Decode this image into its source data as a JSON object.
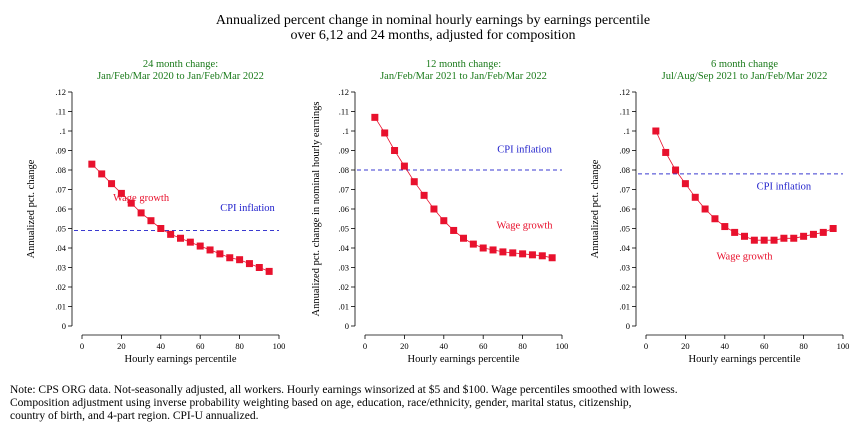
{
  "title_lines": [
    "Annualized percent change in nominal hourly earnings by earnings percentile",
    "over 6,12 and 24 months, adjusted for composition"
  ],
  "note_lines": [
    "Note: CPS ORG data. Not-seasonally adjusted, all workers. Hourly earnings winsorized at $5 and $100. Wage percentiles smoothed with lowess.",
    "Composition adjustment using inverse probability weighting based on age, education, race/ethnicity, gender, marital status, citizenship,",
    "country of birth, and 4-part region. CPI-U annualized."
  ],
  "colors": {
    "title_green": "#1a7a1a",
    "wage_red": "#e8112d",
    "cpi_blue": "#2222cc",
    "cpi_line": "#3a3ad0"
  },
  "chart_data": [
    {
      "type": "line",
      "title": [
        "24 month change:",
        "Jan/Feb/Mar 2020 to Jan/Feb/Mar 2022"
      ],
      "xlabel": "Hourly earnings percentile",
      "ylabel": "Annualized pct. change",
      "xlim": [
        0,
        100
      ],
      "ylim": [
        0,
        0.12
      ],
      "xticks": [
        "0",
        "20",
        "40",
        "60",
        "80",
        "100"
      ],
      "yticks": [
        "0",
        ".01",
        ".02",
        ".03",
        ".04",
        ".05",
        ".06",
        ".07",
        ".08",
        ".09",
        ".1",
        ".11",
        ".12"
      ],
      "series": [
        {
          "name": "Wage growth",
          "x": [
            5,
            10,
            15,
            20,
            25,
            30,
            35,
            40,
            45,
            50,
            55,
            60,
            65,
            70,
            75,
            80,
            85,
            90,
            95
          ],
          "y": [
            0.083,
            0.078,
            0.073,
            0.068,
            0.063,
            0.058,
            0.054,
            0.05,
            0.047,
            0.045,
            0.043,
            0.041,
            0.039,
            0.037,
            0.035,
            0.034,
            0.032,
            0.03,
            0.028
          ]
        },
        {
          "name": "CPI inflation",
          "y": 0.049
        }
      ],
      "annotations": [
        {
          "text": "Wage growth",
          "x": 30,
          "y": 0.064,
          "color": "wage_red"
        },
        {
          "text": "CPI inflation",
          "x": 84,
          "y": 0.059,
          "color": "cpi_blue"
        }
      ]
    },
    {
      "type": "line",
      "title": [
        "12 month change:",
        "Jan/Feb/Mar 2021 to Jan/Feb/Mar 2022"
      ],
      "xlabel": "Hourly earnings percentile",
      "ylabel": "Annualized pct. change in nominal hourly earnings",
      "xlim": [
        0,
        100
      ],
      "ylim": [
        0,
        0.12
      ],
      "xticks": [
        "0",
        "20",
        "40",
        "60",
        "80",
        "100"
      ],
      "yticks": [
        "0",
        ".01",
        ".02",
        ".03",
        ".04",
        ".05",
        ".06",
        ".07",
        ".08",
        ".09",
        ".1",
        ".11",
        ".12"
      ],
      "series": [
        {
          "name": "Wage growth",
          "x": [
            5,
            10,
            15,
            20,
            25,
            30,
            35,
            40,
            45,
            50,
            55,
            60,
            65,
            70,
            75,
            80,
            85,
            90,
            95
          ],
          "y": [
            0.107,
            0.099,
            0.09,
            0.082,
            0.074,
            0.067,
            0.06,
            0.054,
            0.049,
            0.045,
            0.042,
            0.04,
            0.039,
            0.038,
            0.0375,
            0.037,
            0.0365,
            0.036,
            0.035
          ]
        },
        {
          "name": "CPI inflation",
          "y": 0.08
        }
      ],
      "annotations": [
        {
          "text": "CPI inflation",
          "x": 81,
          "y": 0.089,
          "color": "cpi_blue"
        },
        {
          "text": "Wage growth",
          "x": 81,
          "y": 0.05,
          "color": "wage_red"
        }
      ]
    },
    {
      "type": "line",
      "title": [
        "6 month change",
        "Jul/Aug/Sep 2021 to Jan/Feb/Mar 2022"
      ],
      "xlabel": "Hourly earnings percentile",
      "ylabel": "Annualized pct. change",
      "xlim": [
        0,
        100
      ],
      "ylim": [
        0,
        0.12
      ],
      "xticks": [
        "0",
        "20",
        "40",
        "60",
        "80",
        "100"
      ],
      "yticks": [
        "0",
        ".01",
        ".02",
        ".03",
        ".04",
        ".05",
        ".06",
        ".07",
        ".08",
        ".09",
        ".1",
        ".11",
        ".12"
      ],
      "series": [
        {
          "name": "Wage growth",
          "x": [
            5,
            10,
            15,
            20,
            25,
            30,
            35,
            40,
            45,
            50,
            55,
            60,
            65,
            70,
            75,
            80,
            85,
            90,
            95
          ],
          "y": [
            0.1,
            0.089,
            0.08,
            0.073,
            0.066,
            0.06,
            0.055,
            0.051,
            0.048,
            0.046,
            0.044,
            0.044,
            0.044,
            0.045,
            0.045,
            0.046,
            0.047,
            0.048,
            0.05
          ]
        },
        {
          "name": "CPI inflation",
          "y": 0.078
        }
      ],
      "annotations": [
        {
          "text": "CPI inflation",
          "x": 70,
          "y": 0.07,
          "color": "cpi_blue"
        },
        {
          "text": "Wage growth",
          "x": 50,
          "y": 0.034,
          "color": "wage_red"
        }
      ]
    }
  ]
}
